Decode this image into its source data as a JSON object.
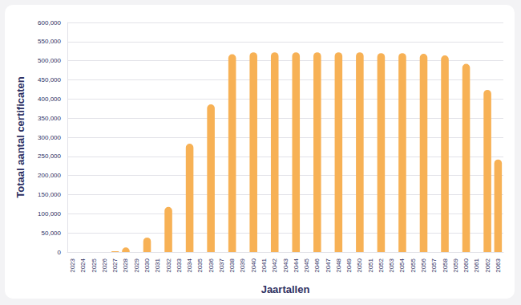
{
  "chart_data": {
    "type": "bar",
    "x_label": "Jaartallen",
    "y_label": "Totaal aantal certificaten",
    "categories": [
      "2023",
      "2024",
      "2025",
      "2026",
      "2027",
      "2028",
      "2029",
      "2030",
      "2031",
      "2032",
      "2033",
      "2034",
      "2035",
      "2036",
      "2037",
      "2038",
      "2039",
      "2040",
      "2041",
      "2042",
      "2043",
      "2044",
      "2045",
      "2046",
      "2047",
      "2048",
      "2049",
      "2050",
      "2051",
      "2052",
      "2053",
      "2054",
      "2055",
      "2056",
      "2057",
      "2058",
      "2059",
      "2060",
      "2061",
      "2062",
      "2063"
    ],
    "values": [
      null,
      null,
      null,
      null,
      2000,
      12000,
      null,
      38000,
      null,
      118000,
      null,
      283000,
      null,
      386000,
      null,
      517000,
      null,
      522000,
      null,
      522000,
      null,
      522000,
      null,
      522000,
      null,
      522000,
      null,
      522000,
      null,
      520000,
      null,
      520000,
      null,
      518000,
      null,
      514000,
      null,
      492000,
      null,
      424000,
      242000
    ],
    "color": "#f7b155",
    "ylim": [
      0,
      600000
    ],
    "yticks": [
      0,
      {
        "value": 50000,
        "label": "50,000"
      },
      {
        "value": 100000,
        "label": "100,000"
      },
      {
        "value": 150000,
        "label": "150,000"
      },
      {
        "value": 200000,
        "label": "200,000"
      },
      {
        "value": 250000,
        "label": "250,000"
      },
      {
        "value": 300000,
        "label": "300,000"
      },
      {
        "value": 350000,
        "label": "350,000"
      },
      {
        "value": 400000,
        "label": "400,000"
      },
      {
        "value": 450000,
        "label": "450,000"
      },
      {
        "value": 500000,
        "label": "500,000"
      },
      {
        "value": 550000,
        "label": "550,000"
      },
      {
        "value": 600000,
        "label": "600,000"
      }
    ],
    "grid": true
  }
}
